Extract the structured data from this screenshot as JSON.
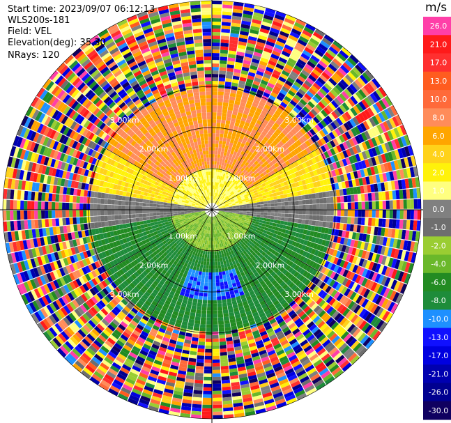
{
  "header": {
    "start_time": "Start time: 2023/09/07 06:12:13",
    "instrument": "WLS200s-181",
    "field": "Field: VEL",
    "elevation": "Elevation(deg): 35.30",
    "nrays": "NRays: 120"
  },
  "colorbar": {
    "title": "m/s",
    "labels": [
      "26.0",
      "21.0",
      "17.0",
      "13.0",
      "10.0",
      "8.0",
      "6.0",
      "4.0",
      "2.0",
      "1.0",
      "0.0",
      "-1.0",
      "-2.0",
      "-4.0",
      "-6.0",
      "-8.0",
      "-10.0",
      "-13.0",
      "-17.0",
      "-21.0",
      "-26.0",
      "-30.0"
    ],
    "colors": [
      "#ff3fa8",
      "#ff1a1a",
      "#ff2f2f",
      "#ff5c1f",
      "#ff6a3a",
      "#ff8c5a",
      "#ffa500",
      "#ffd21a",
      "#fff20a",
      "#ffff80",
      "#808080",
      "#6e6e6e",
      "#9acd32",
      "#6ab82a",
      "#228b22",
      "#1e8c3a",
      "#1e90ff",
      "#1010ff",
      "#0000e0",
      "#0000b0",
      "#000090",
      "#100060"
    ]
  },
  "chart_data": {
    "type": "heatmap",
    "projection": "ppi",
    "field": "VEL",
    "units": "m/s",
    "nrays": 120,
    "range_rings_km": [
      1.0,
      2.0,
      3.0
    ],
    "range_ring_labels": [
      "1.00km",
      "2.00km",
      "3.00km"
    ],
    "max_valid_range_km": 3.0,
    "value_sectors": [
      {
        "azimuth_from": 300,
        "azimuth_to": 60,
        "range_km": [
          1.0,
          3.0
        ],
        "velocity_ms": 8.0
      },
      {
        "azimuth_from": 60,
        "azimuth_to": 90,
        "range_km": [
          1.0,
          3.0
        ],
        "velocity_ms": 4.0
      },
      {
        "azimuth_from": 270,
        "azimuth_to": 300,
        "range_km": [
          1.0,
          3.0
        ],
        "velocity_ms": 4.0
      },
      {
        "azimuth_from": 0,
        "azimuth_to": 360,
        "range_km": [
          0.2,
          1.0
        ],
        "velocity_ms": 2.0
      },
      {
        "azimuth_from": 90,
        "azimuth_to": 270,
        "range_km": [
          0.2,
          1.0
        ],
        "velocity_ms": -2.0
      },
      {
        "azimuth_from": 100,
        "azimuth_to": 260,
        "range_km": [
          1.0,
          3.0
        ],
        "velocity_ms": -6.0
      },
      {
        "azimuth_from": 160,
        "azimuth_to": 200,
        "range_km": [
          1.5,
          2.2
        ],
        "velocity_ms": -10.0
      },
      {
        "azimuth_from": 80,
        "azimuth_to": 100,
        "range_km": [
          0.0,
          3.0
        ],
        "velocity_ms": 0.0
      },
      {
        "azimuth_from": 260,
        "azimuth_to": 280,
        "range_km": [
          0.0,
          3.0
        ],
        "velocity_ms": 0.0
      }
    ],
    "outer_region": "noise (random velocities) beyond ~3 km"
  }
}
